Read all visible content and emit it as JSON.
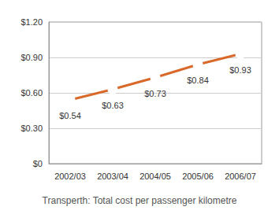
{
  "chart_data": {
    "type": "line",
    "title": "Transperth: Total cost per passenger kilometre",
    "categories": [
      "2002/03",
      "2003/04",
      "2004/05",
      "2005/06",
      "2006/07"
    ],
    "values": [
      0.54,
      0.63,
      0.73,
      0.84,
      0.93
    ],
    "value_labels": [
      "$0.54",
      "$0.63",
      "$0.73",
      "$0.84",
      "$0.93"
    ],
    "color": "#d9692a",
    "marker": "circle",
    "ylim": [
      0,
      1.2
    ],
    "yticks": [
      {
        "value": 0,
        "label": "$0"
      },
      {
        "value": 0.3,
        "label": "$0.30"
      },
      {
        "value": 0.6,
        "label": "$0.60"
      },
      {
        "value": 0.9,
        "label": "$0.90"
      },
      {
        "value": 1.2,
        "label": "$1.20"
      }
    ],
    "grid": true,
    "data_labels": true
  }
}
